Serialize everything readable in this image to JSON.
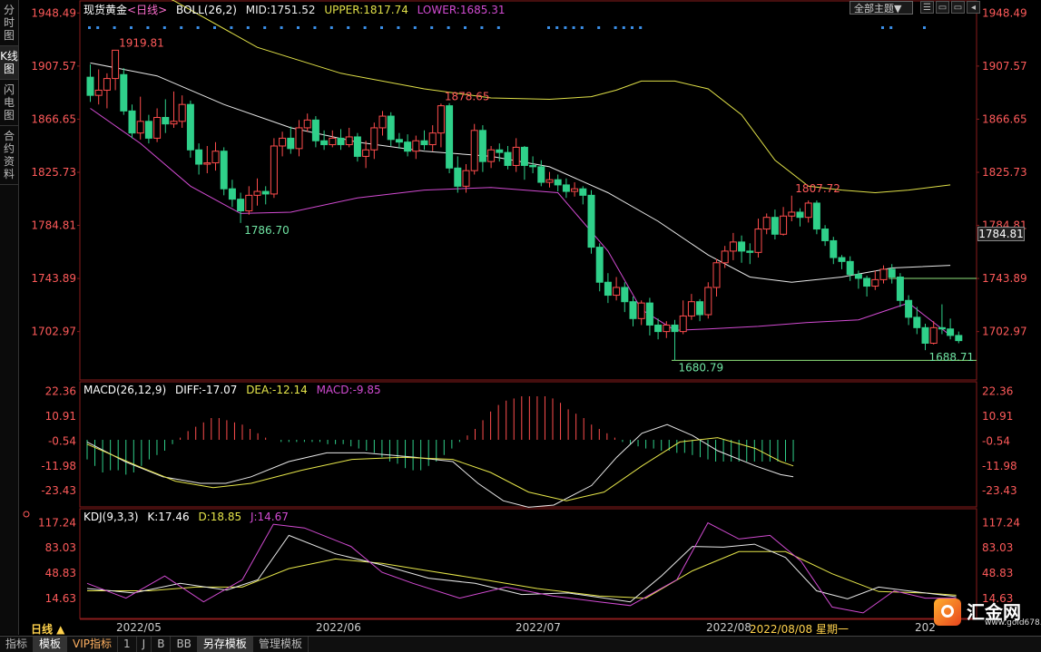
{
  "sidebar": {
    "tabs": [
      "分时图",
      "K线图",
      "闪电图",
      "合约资料"
    ],
    "active": 1
  },
  "header": {
    "instrument": "现货黄金",
    "period": "<日线>",
    "boll_label": "BOLL(26,2)",
    "mid": "MID:1751.52",
    "upper": "UPPER:1817.74",
    "lower": "LOWER:1685.31",
    "theme_select": "全部主题▼",
    "win_buttons": [
      "☰",
      "▭",
      "▭",
      "◂"
    ]
  },
  "price_axis": [
    "1948.49",
    "1907.57",
    "1866.65",
    "1825.73",
    "1784.81",
    "1743.89",
    "1702.97"
  ],
  "current_price": "1784.81",
  "annotations": {
    "high1": "1919.81",
    "low1": "1786.70",
    "high2": "1878.65",
    "low2": "1680.79",
    "high3": "1807.72",
    "low3": "1688.71"
  },
  "macd": {
    "label": "MACD(26,12,9)",
    "diff": "DIFF:-17.07",
    "dea": "DEA:-12.14",
    "macd": "MACD:-9.85",
    "axis": [
      "22.36",
      "10.91",
      "-0.54",
      "-11.98",
      "-23.43"
    ]
  },
  "kdj": {
    "label": "KDJ(9,3,3)",
    "k": "K:17.46",
    "d": "D:18.85",
    "j": "J:14.67",
    "axis": [
      "117.24",
      "83.03",
      "48.83",
      "14.63"
    ]
  },
  "period_label": "日线 ▲",
  "dates": [
    "2022/05",
    "2022/06",
    "2022/07",
    "2022/08",
    "202"
  ],
  "hover_date": "2022/08/08 星期一",
  "bottom_tabs": [
    "指标",
    "模板",
    "VIP指标",
    "1",
    "J",
    "B",
    "BB",
    "另存模板",
    "管理模板"
  ],
  "bottom_active": 1,
  "logo": {
    "name": "汇金网",
    "url": "www.gold678.com"
  },
  "colors": {
    "up": "#ff4d4d",
    "down": "#2fd08a",
    "upper": "#e0e048",
    "mid": "#e8e8e8",
    "lower": "#d24bd2",
    "dea": "#e6e64a",
    "j": "#d24bd2",
    "axis_text": "#ff5a5a"
  },
  "chart_data": {
    "type": "candlestick",
    "title": "现货黄金 日线",
    "ylim": [
      1665,
      1955
    ],
    "candles": [
      [
        1899,
        1885,
        1909,
        1880
      ],
      [
        1885,
        1889,
        1905,
        1878
      ],
      [
        1889,
        1898,
        1902,
        1875
      ],
      [
        1898,
        1919.81,
        1919.81,
        1889
      ],
      [
        1901,
        1873,
        1906,
        1870
      ],
      [
        1873,
        1856,
        1878,
        1852
      ],
      [
        1856,
        1865,
        1884,
        1851
      ],
      [
        1865,
        1852,
        1870,
        1848
      ],
      [
        1852,
        1868,
        1875,
        1849
      ],
      [
        1868,
        1863,
        1882,
        1856
      ],
      [
        1863,
        1865,
        1888,
        1860
      ],
      [
        1865,
        1878,
        1885,
        1860
      ],
      [
        1878,
        1843,
        1881,
        1837
      ],
      [
        1843,
        1832,
        1848,
        1824
      ],
      [
        1832,
        1833,
        1846,
        1825
      ],
      [
        1833,
        1842,
        1849,
        1827
      ],
      [
        1842,
        1813,
        1845,
        1808
      ],
      [
        1813,
        1805,
        1820,
        1799
      ],
      [
        1805,
        1796,
        1810,
        1786.7
      ],
      [
        1796,
        1808,
        1815,
        1793
      ],
      [
        1808,
        1811,
        1821,
        1800
      ],
      [
        1811,
        1809,
        1815,
        1801
      ],
      [
        1809,
        1846,
        1852,
        1806
      ],
      [
        1846,
        1852,
        1857,
        1838
      ],
      [
        1852,
        1844,
        1861,
        1840
      ],
      [
        1844,
        1860,
        1866,
        1838
      ],
      [
        1860,
        1866,
        1871,
        1857
      ],
      [
        1866,
        1850,
        1869,
        1845
      ],
      [
        1850,
        1847,
        1858,
        1843
      ],
      [
        1847,
        1852,
        1858,
        1845
      ],
      [
        1852,
        1847,
        1859,
        1843
      ],
      [
        1847,
        1853,
        1860,
        1845
      ],
      [
        1853,
        1838,
        1856,
        1834
      ],
      [
        1838,
        1843,
        1850,
        1829
      ],
      [
        1843,
        1860,
        1864,
        1836
      ],
      [
        1860,
        1869,
        1873,
        1854
      ],
      [
        1869,
        1851,
        1872,
        1846
      ],
      [
        1851,
        1849,
        1856,
        1844
      ],
      [
        1849,
        1842,
        1855,
        1838
      ],
      [
        1842,
        1850,
        1854,
        1836
      ],
      [
        1850,
        1847,
        1858,
        1843
      ],
      [
        1847,
        1856,
        1862,
        1842
      ],
      [
        1856,
        1877,
        1878.65,
        1845
      ],
      [
        1877,
        1829,
        1879,
        1825
      ],
      [
        1829,
        1815,
        1838,
        1810
      ],
      [
        1815,
        1827,
        1832,
        1810
      ],
      [
        1827,
        1858,
        1863,
        1824
      ],
      [
        1858,
        1834,
        1862,
        1826
      ],
      [
        1834,
        1843,
        1846,
        1829
      ],
      [
        1843,
        1841,
        1848,
        1834
      ],
      [
        1841,
        1831,
        1846,
        1828
      ],
      [
        1831,
        1845,
        1852,
        1826
      ],
      [
        1845,
        1831,
        1846,
        1820
      ],
      [
        1831,
        1830,
        1838,
        1825
      ],
      [
        1830,
        1818,
        1835,
        1815
      ],
      [
        1818,
        1820,
        1826,
        1814
      ],
      [
        1820,
        1816,
        1824,
        1811
      ],
      [
        1816,
        1811,
        1821,
        1806
      ],
      [
        1811,
        1813,
        1818,
        1807
      ],
      [
        1813,
        1808,
        1815,
        1801
      ],
      [
        1808,
        1768,
        1812,
        1763
      ],
      [
        1768,
        1741,
        1771,
        1734
      ],
      [
        1741,
        1731,
        1748,
        1725
      ],
      [
        1731,
        1737,
        1745,
        1727
      ],
      [
        1737,
        1726,
        1741,
        1718
      ],
      [
        1726,
        1713,
        1730,
        1707
      ],
      [
        1713,
        1725,
        1727,
        1708
      ],
      [
        1725,
        1708,
        1729,
        1700
      ],
      [
        1708,
        1703,
        1713,
        1697
      ],
      [
        1703,
        1708,
        1711,
        1698
      ],
      [
        1708,
        1703,
        1712,
        1680.79
      ],
      [
        1703,
        1715,
        1727,
        1701
      ],
      [
        1715,
        1726,
        1732,
        1712
      ],
      [
        1726,
        1716,
        1728,
        1711
      ],
      [
        1716,
        1737,
        1741,
        1713
      ],
      [
        1737,
        1756,
        1759,
        1730
      ],
      [
        1756,
        1765,
        1769,
        1752
      ],
      [
        1765,
        1772,
        1779,
        1758
      ],
      [
        1772,
        1765,
        1777,
        1756
      ],
      [
        1765,
        1764,
        1771,
        1755
      ],
      [
        1764,
        1782,
        1790,
        1760
      ],
      [
        1782,
        1791,
        1794,
        1778
      ],
      [
        1791,
        1778,
        1797,
        1774
      ],
      [
        1778,
        1792,
        1799,
        1777
      ],
      [
        1792,
        1795,
        1807.72,
        1788
      ],
      [
        1795,
        1791,
        1798,
        1784
      ],
      [
        1791,
        1802,
        1804,
        1787
      ],
      [
        1802,
        1782,
        1804,
        1778
      ],
      [
        1782,
        1773,
        1785,
        1769
      ],
      [
        1773,
        1760,
        1776,
        1755
      ],
      [
        1760,
        1757,
        1762,
        1751
      ],
      [
        1757,
        1747,
        1761,
        1742
      ],
      [
        1747,
        1744,
        1750,
        1736
      ],
      [
        1744,
        1738,
        1746,
        1730
      ],
      [
        1738,
        1743,
        1750,
        1735
      ],
      [
        1743,
        1751,
        1754,
        1740
      ],
      [
        1751,
        1745,
        1755,
        1740
      ],
      [
        1745,
        1727,
        1748,
        1722
      ],
      [
        1727,
        1714,
        1731,
        1708
      ],
      [
        1714,
        1706,
        1722,
        1701
      ],
      [
        1706,
        1694,
        1709,
        1688.71
      ],
      [
        1694,
        1706,
        1711,
        1693
      ],
      [
        1706,
        1705,
        1724,
        1701
      ],
      [
        1705,
        1700,
        1713,
        1697
      ],
      [
        1700,
        1696,
        1703,
        1694
      ]
    ],
    "boll_upper": [
      [
        0,
        1985
      ],
      [
        10,
        1958
      ],
      [
        20,
        1922
      ],
      [
        30,
        1902
      ],
      [
        40,
        1890
      ],
      [
        48,
        1883
      ],
      [
        55,
        1882
      ],
      [
        60,
        1884
      ],
      [
        63,
        1889
      ],
      [
        66,
        1896
      ],
      [
        70,
        1896
      ],
      [
        74,
        1890
      ],
      [
        78,
        1870
      ],
      [
        82,
        1835
      ],
      [
        86,
        1815
      ],
      [
        90,
        1812
      ],
      [
        94,
        1810
      ],
      [
        98,
        1812
      ],
      [
        103,
        1816
      ]
    ],
    "boll_mid": [
      [
        0,
        1910
      ],
      [
        8,
        1900
      ],
      [
        16,
        1878
      ],
      [
        24,
        1860
      ],
      [
        32,
        1849
      ],
      [
        40,
        1842
      ],
      [
        48,
        1838
      ],
      [
        55,
        1830
      ],
      [
        62,
        1810
      ],
      [
        68,
        1788
      ],
      [
        74,
        1762
      ],
      [
        79,
        1745
      ],
      [
        84,
        1741
      ],
      [
        90,
        1745
      ],
      [
        96,
        1752
      ],
      [
        103,
        1754
      ]
    ],
    "boll_lower": [
      [
        0,
        1875
      ],
      [
        6,
        1848
      ],
      [
        12,
        1815
      ],
      [
        18,
        1794
      ],
      [
        24,
        1795
      ],
      [
        32,
        1806
      ],
      [
        40,
        1812
      ],
      [
        48,
        1814
      ],
      [
        56,
        1810
      ],
      [
        62,
        1765
      ],
      [
        66,
        1720
      ],
      [
        70,
        1704
      ],
      [
        74,
        1705
      ],
      [
        80,
        1707
      ],
      [
        86,
        1710
      ],
      [
        92,
        1712
      ],
      [
        98,
        1725
      ],
      [
        103,
        1700
      ]
    ],
    "hlines": [
      [
        1680.79,
        70,
        103
      ],
      [
        1744,
        96,
        103
      ]
    ],
    "macd_hist": [
      -9,
      -12,
      -15,
      -14,
      -14,
      -16,
      -15,
      -12,
      -9,
      -7,
      -5,
      -2,
      1,
      4,
      6,
      8,
      10,
      10,
      9,
      8,
      7,
      5,
      3,
      1,
      0,
      -1,
      -1,
      -1,
      -1,
      -1,
      -1,
      -2,
      -2,
      -2,
      -3,
      -4,
      -5,
      -6,
      -8,
      -10,
      -11,
      -13,
      -14,
      -14,
      -12,
      -10,
      -7,
      -4,
      -1,
      2,
      5,
      9,
      13,
      16,
      18,
      19,
      20,
      20,
      20,
      20,
      19,
      17,
      14,
      12,
      10,
      7,
      5,
      3,
      1,
      -1,
      -2,
      -3,
      -4,
      -4,
      -5,
      -5,
      -6,
      -6,
      -7,
      -8,
      -9,
      -10,
      -10,
      -10,
      -10,
      -10,
      -10,
      -10,
      -10,
      -10,
      -10,
      -10
    ],
    "macd_dif": [
      [
        0,
        -1
      ],
      [
        6,
        -10
      ],
      [
        12,
        -17
      ],
      [
        18,
        -20
      ],
      [
        22,
        -20
      ],
      [
        26,
        -17
      ],
      [
        32,
        -10
      ],
      [
        38,
        -6
      ],
      [
        44,
        -6
      ],
      [
        52,
        -8
      ],
      [
        58,
        -10
      ],
      [
        62,
        -20
      ],
      [
        66,
        -28
      ],
      [
        70,
        -31
      ],
      [
        74,
        -30
      ],
      [
        80,
        -21
      ],
      [
        84,
        -8
      ],
      [
        88,
        3
      ],
      [
        92,
        7
      ],
      [
        96,
        2
      ],
      [
        100,
        -5
      ],
      [
        106,
        -12
      ],
      [
        110,
        -16
      ],
      [
        112,
        -17
      ]
    ],
    "macd_dea": [
      [
        0,
        -2
      ],
      [
        8,
        -12
      ],
      [
        14,
        -19
      ],
      [
        20,
        -22
      ],
      [
        26,
        -20
      ],
      [
        34,
        -14
      ],
      [
        42,
        -9
      ],
      [
        50,
        -8
      ],
      [
        58,
        -9
      ],
      [
        64,
        -15
      ],
      [
        70,
        -24
      ],
      [
        76,
        -28
      ],
      [
        82,
        -24
      ],
      [
        88,
        -12
      ],
      [
        94,
        -1
      ],
      [
        100,
        1
      ],
      [
        106,
        -4
      ],
      [
        110,
        -10
      ],
      [
        112,
        -12
      ]
    ],
    "kdj_k": [
      [
        0,
        28
      ],
      [
        6,
        22
      ],
      [
        12,
        35
      ],
      [
        18,
        26
      ],
      [
        22,
        40
      ],
      [
        26,
        100
      ],
      [
        32,
        75
      ],
      [
        38,
        60
      ],
      [
        44,
        42
      ],
      [
        50,
        35
      ],
      [
        56,
        20
      ],
      [
        62,
        22
      ],
      [
        66,
        16
      ],
      [
        70,
        10
      ],
      [
        74,
        45
      ],
      [
        78,
        85
      ],
      [
        82,
        84
      ],
      [
        86,
        88
      ],
      [
        90,
        70
      ],
      [
        94,
        25
      ],
      [
        98,
        14
      ],
      [
        102,
        30
      ],
      [
        108,
        22
      ],
      [
        112,
        17
      ]
    ],
    "kdj_d": [
      [
        0,
        25
      ],
      [
        8,
        25
      ],
      [
        14,
        30
      ],
      [
        20,
        30
      ],
      [
        26,
        55
      ],
      [
        32,
        68
      ],
      [
        38,
        62
      ],
      [
        44,
        52
      ],
      [
        50,
        42
      ],
      [
        58,
        28
      ],
      [
        66,
        18
      ],
      [
        72,
        15
      ],
      [
        78,
        52
      ],
      [
        84,
        78
      ],
      [
        90,
        78
      ],
      [
        96,
        48
      ],
      [
        102,
        24
      ],
      [
        108,
        22
      ],
      [
        112,
        19
      ]
    ],
    "kdj_j": [
      [
        0,
        35
      ],
      [
        5,
        15
      ],
      [
        10,
        45
      ],
      [
        15,
        10
      ],
      [
        20,
        40
      ],
      [
        24,
        115
      ],
      [
        28,
        110
      ],
      [
        34,
        85
      ],
      [
        38,
        50
      ],
      [
        42,
        35
      ],
      [
        48,
        15
      ],
      [
        54,
        30
      ],
      [
        60,
        18
      ],
      [
        66,
        10
      ],
      [
        70,
        5
      ],
      [
        76,
        40
      ],
      [
        80,
        117
      ],
      [
        84,
        95
      ],
      [
        88,
        100
      ],
      [
        92,
        65
      ],
      [
        96,
        3
      ],
      [
        100,
        -5
      ],
      [
        104,
        25
      ],
      [
        108,
        15
      ],
      [
        112,
        15
      ]
    ]
  }
}
